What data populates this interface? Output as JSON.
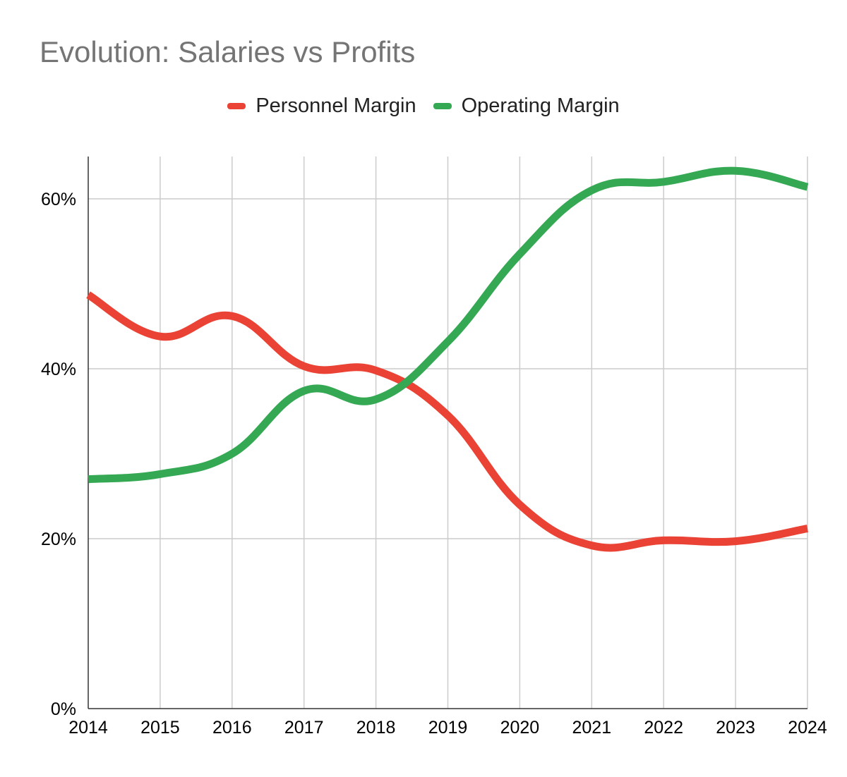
{
  "chart_data": {
    "type": "line",
    "title": "Evolution: Salaries vs Profits",
    "xlabel": "",
    "ylabel": "",
    "x": [
      "2014",
      "2015",
      "2016",
      "2017",
      "2018",
      "2019",
      "2020",
      "2021",
      "2022",
      "2023",
      "2024"
    ],
    "ylim": [
      0,
      0.65
    ],
    "yticks": [
      "0%",
      "20%",
      "40%",
      "60%"
    ],
    "grid": true,
    "legend_position": "top",
    "series": [
      {
        "name": "Personnel Margin",
        "color": "#ea4335",
        "values": [
          0.487,
          0.438,
          0.462,
          0.403,
          0.398,
          0.345,
          0.24,
          0.192,
          0.198,
          0.197,
          0.212
        ]
      },
      {
        "name": "Operating Margin",
        "color": "#34a853",
        "values": [
          0.27,
          0.276,
          0.3,
          0.374,
          0.364,
          0.432,
          0.535,
          0.61,
          0.62,
          0.633,
          0.614
        ]
      }
    ]
  }
}
